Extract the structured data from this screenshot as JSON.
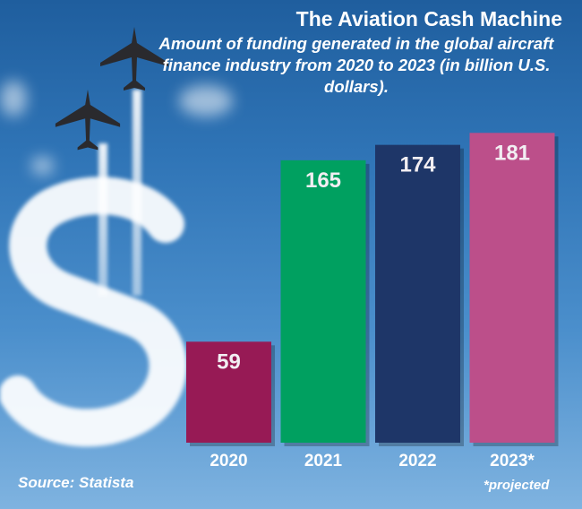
{
  "chart_data": {
    "type": "bar",
    "title": "The Aviation Cash Machine",
    "subtitle": "Amount of funding generated in the global aircraft finance industry from 2020 to 2023 (in billion U.S. dollars).",
    "categories": [
      "2020",
      "2021",
      "2022",
      "2023*"
    ],
    "values": [
      59,
      165,
      174,
      181
    ],
    "colors": [
      "#971a55",
      "#00a060",
      "#1e3668",
      "#bc4f8a"
    ],
    "data_labels": [
      "59",
      "165",
      "174",
      "181"
    ],
    "xlabel": "",
    "ylabel": "",
    "grid": false,
    "note": "*projected",
    "source": "Source: Statista"
  }
}
